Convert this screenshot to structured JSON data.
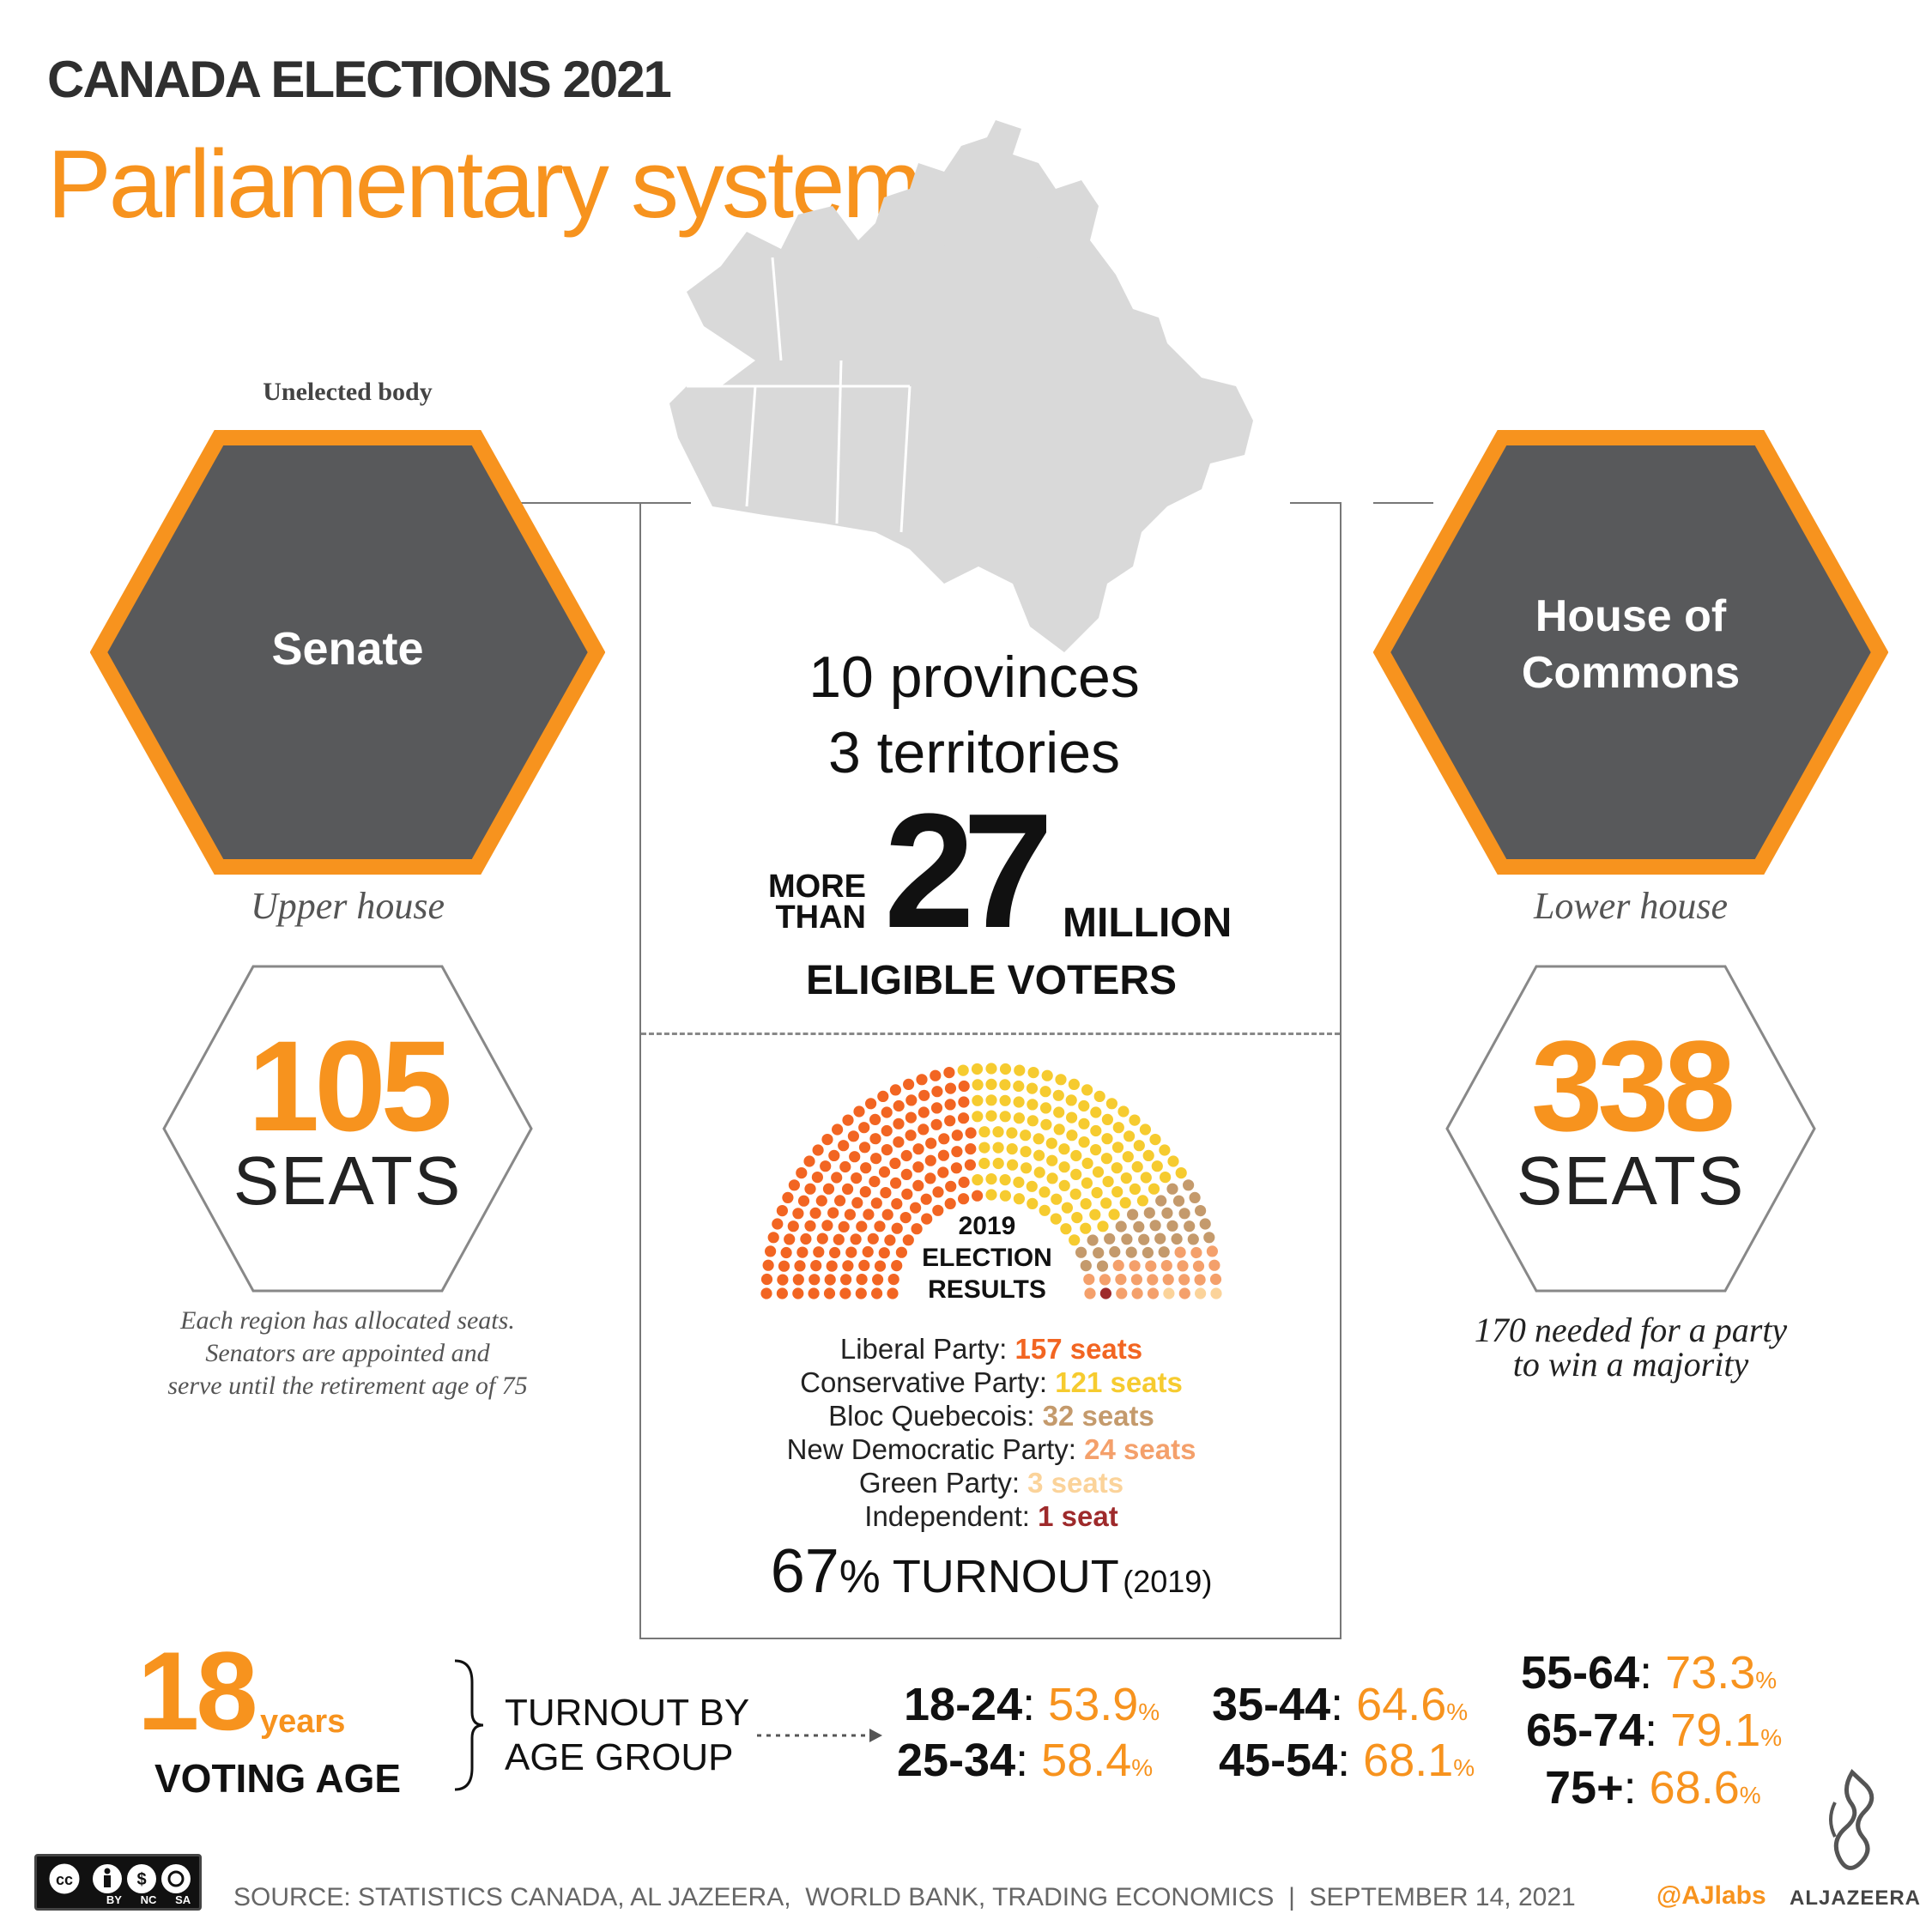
{
  "header": {
    "kicker": "CANADA ELECTIONS 2021",
    "title": "Parliamentary system"
  },
  "senate": {
    "note_top": "Unelected body",
    "name": "Senate",
    "subtitle": "Upper house",
    "seats_number": "105",
    "seats_word": "SEATS",
    "description_lines": [
      "Each region has allocated seats.",
      "Senators are appointed and",
      "serve until the retirement age of 75"
    ]
  },
  "commons": {
    "name_line1": "House of",
    "name_line2": "Commons",
    "subtitle": "Lower house",
    "seats_number": "338",
    "seats_word": "SEATS",
    "description_lines": [
      "170 needed for a party",
      "to win a majority"
    ]
  },
  "country": {
    "provinces": "10 provinces",
    "territories": "3 territories",
    "more": "MORE",
    "than": "THAN",
    "voters_number": "27",
    "million": "MILLION",
    "voters_label": "ELIGIBLE VOTERS"
  },
  "results_2019": {
    "center_label_lines": [
      "2019",
      "ELECTION",
      "RESULTS"
    ],
    "parties": [
      {
        "name": "Liberal Party:",
        "seats_label": "157 seats",
        "seats": 157,
        "color": "#f26522"
      },
      {
        "name": "Conservative Party:",
        "seats_label": "121 seats",
        "seats": 121,
        "color": "#f6cb2f"
      },
      {
        "name": "Bloc Quebecois:",
        "seats_label": "32 seats",
        "seats": 32,
        "color": "#c49a6c"
      },
      {
        "name": "New Democratic Party:",
        "seats_label": "24 seats",
        "seats": 24,
        "color": "#f4a06b"
      },
      {
        "name": "Green Party:",
        "seats_label": "3 seats",
        "seats": 3,
        "color": "#fbd39a"
      },
      {
        "name": "Independent:",
        "seats_label": "1 seat",
        "seats": 1,
        "color": "#9e2a2b"
      }
    ],
    "turnout_number": "67",
    "turnout_label": "% TURNOUT",
    "turnout_year": "(2019)"
  },
  "voting": {
    "age_number": "18",
    "age_unit": "years",
    "age_label": "VOTING AGE",
    "turnout_by_line1": "TURNOUT BY",
    "turnout_by_line2": "AGE GROUP",
    "age_groups": [
      {
        "range": "18-24",
        "value": "53.9"
      },
      {
        "range": "25-34",
        "value": "58.4"
      },
      {
        "range": "35-44",
        "value": "64.6"
      },
      {
        "range": "45-54",
        "value": "68.1"
      },
      {
        "range": "55-64",
        "value": "73.3"
      },
      {
        "range": "65-74",
        "value": "79.1"
      },
      {
        "range": "75+",
        "value": "68.6"
      }
    ],
    "colon": ":",
    "percent": "%"
  },
  "footer": {
    "license_labels": [
      "BY",
      "NC",
      "SA"
    ],
    "source": "SOURCE: STATISTICS CANADA, AL JAZEERA,  WORLD BANK, TRADING ECONOMICS  |  SEPTEMBER 14, 2021",
    "handle": "@AJlabs",
    "brand": "ALJAZEERA"
  },
  "colors": {
    "orange": "#f7931e",
    "hex_fill": "#58595b",
    "map_fill": "#d9d9d9"
  },
  "icons": {
    "map": "canada-map-icon",
    "license": "creative-commons-icon",
    "logo": "aljazeera-logo-icon"
  }
}
